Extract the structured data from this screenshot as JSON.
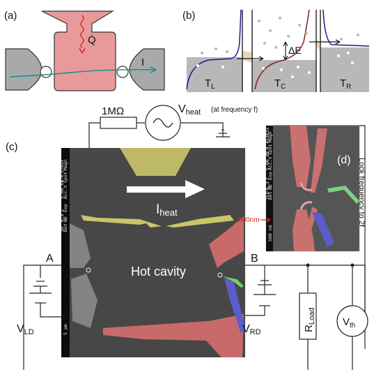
{
  "panels": {
    "a": "(a)",
    "b": "(b)",
    "c": "(c)",
    "d": "(d)"
  },
  "panel_a": {
    "heat_flow": "Q̇",
    "current": "I"
  },
  "panel_b": {
    "left": "T",
    "left_sub": "L",
    "center": "T",
    "center_sub": "C",
    "right": "T",
    "right_sub": "R",
    "gap": "ΔE"
  },
  "panel_c": {
    "resistor": "1MΩ",
    "vheat": "V",
    "vheat_sub": "heat",
    "vheat_note": "(at frequency f)",
    "iheat": "I",
    "iheat_sub": "heat",
    "cavity": "Hot cavity",
    "node_a": "A",
    "node_b": "B",
    "vld": "V",
    "vld_sub": "LD",
    "vrd": "V",
    "vrd_sub": "RD",
    "rload": "R",
    "rload_sub": "Load",
    "vth": "V",
    "vth_sub": "th",
    "lock": "Lock frequency to 2f",
    "scale": "500nm",
    "sem_info": [
      "Acc.V",
      "Spot",
      "Magn",
      "Det",
      "WD",
      "Exp"
    ],
    "sem_values": [
      "5.00 kV",
      "3.0",
      "5782x",
      "SE",
      "6.8",
      "1"
    ],
    "sem_scale": "5 µm",
    "sem_info_d": [
      "Acc.V",
      "Spot",
      "Magn",
      "Det",
      "WD",
      "Exp"
    ],
    "sem_values_d": [
      "5.00 kV",
      "3.0",
      "45302x",
      "TLD",
      "6.3",
      "1"
    ],
    "sem_scale_d": "500 nm"
  },
  "colors": {
    "cavity_red": "#e07a7a",
    "contact_gray": "#9a9a9a",
    "heater_yellow": "#e6e07a",
    "gate_blue": "#6f6fe0",
    "gate_green": "#7fe07f",
    "sem_bg": "#4a4a4a",
    "wire": "#222222",
    "teal": "#1a8a8a",
    "navy": "#1a1a8a",
    "maroon": "#8a1a1a"
  }
}
